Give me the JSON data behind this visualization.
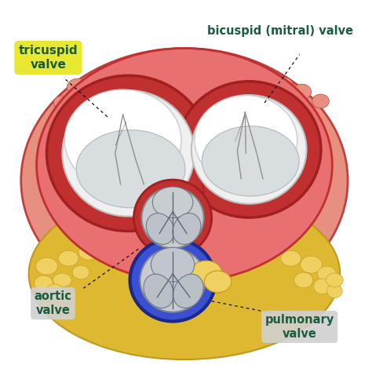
{
  "bg_color": "#ffffff",
  "labels": {
    "tricuspid": "tricuspid\nvalve",
    "bicuspid": "bicuspid (mitral) valve",
    "aortic": "aortic\nvalve",
    "pulmonary": "pulmonary\nvalve"
  },
  "label_colors": {
    "tricuspid_bg": "#e8e830",
    "tricuspid_text": "#1a5c40",
    "bicuspid_text": "#1a5c40",
    "aortic_bg": "#d0d0d0",
    "aortic_text": "#1a5c40",
    "pulmonary_bg": "#d0d0d0",
    "pulmonary_text": "#1a5c40"
  },
  "colors": {
    "outer_tissue": "#e89080",
    "outer_edge": "#c04040",
    "red_ring": "#c03030",
    "red_inner": "#d84848",
    "pink_flesh": "#e87070",
    "fat_yellow": "#ddb830",
    "fat_light": "#f0d060",
    "fat_edge": "#c09820",
    "white_leaflet": "#e8e8e8",
    "leaflet_gray": "#c8ccd0",
    "leaflet_shadow": "#a8b0b8",
    "blue_ring": "#3a50d0",
    "blue_dark": "#1a2888",
    "dot_line": "#111111",
    "line_dark": "#444444",
    "red_sep": "#a02020"
  }
}
